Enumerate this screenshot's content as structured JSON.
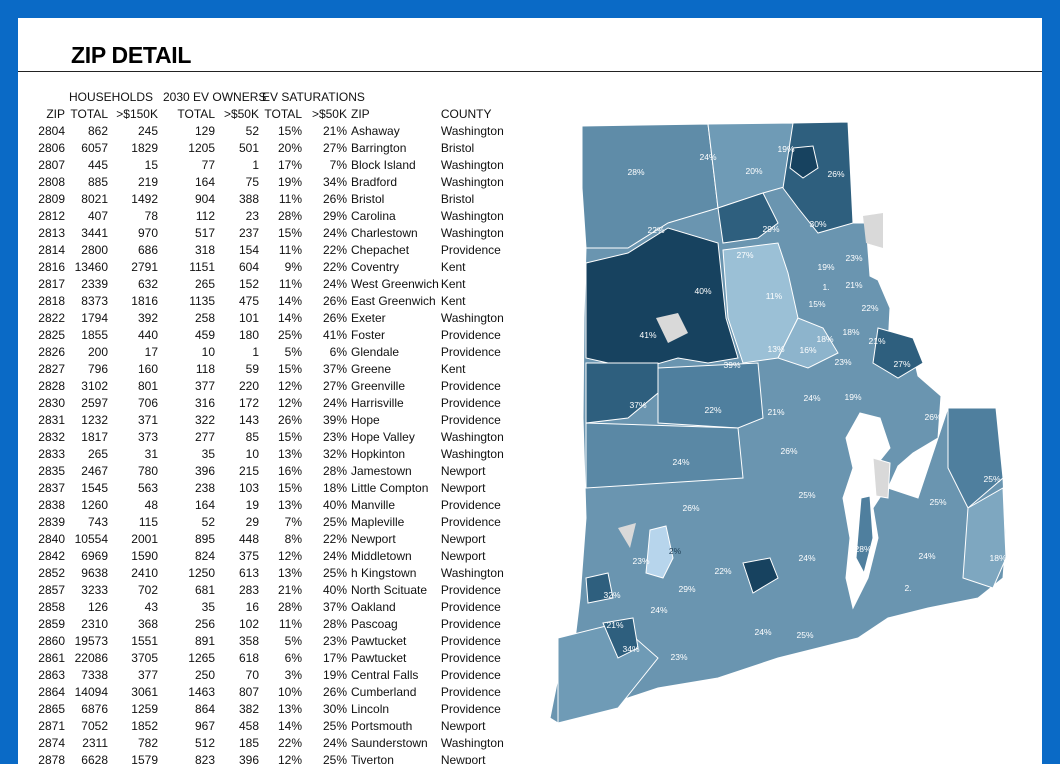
{
  "title": "ZIP DETAIL",
  "group_headers": {
    "households": "HOUSEHOLDS",
    "ev_owners": "2030 EV OWNERS",
    "ev_saturations": "EV SATURATIONS"
  },
  "columns": [
    "ZIP",
    "TOTAL",
    ">$150K",
    "TOTAL",
    ">$50K",
    "TOTAL",
    ">$50K",
    "ZIP",
    "COUNTY"
  ],
  "rows": [
    [
      "2804",
      "862",
      "245",
      "129",
      "52",
      "15%",
      "21%",
      "Ashaway",
      "Washington"
    ],
    [
      "2806",
      "6057",
      "1829",
      "1205",
      "501",
      "20%",
      "27%",
      "Barrington",
      "Bristol"
    ],
    [
      "2807",
      "445",
      "15",
      "77",
      "1",
      "17%",
      "7%",
      "Block Island",
      "Washington"
    ],
    [
      "2808",
      "885",
      "219",
      "164",
      "75",
      "19%",
      "34%",
      "Bradford",
      "Washington"
    ],
    [
      "2809",
      "8021",
      "1492",
      "904",
      "388",
      "11%",
      "26%",
      "Bristol",
      "Bristol"
    ],
    [
      "2812",
      "407",
      "78",
      "112",
      "23",
      "28%",
      "29%",
      "Carolina",
      "Washington"
    ],
    [
      "2813",
      "3441",
      "970",
      "517",
      "237",
      "15%",
      "24%",
      "Charlestown",
      "Washington"
    ],
    [
      "2814",
      "2800",
      "686",
      "318",
      "154",
      "11%",
      "22%",
      "Chepachet",
      "Providence"
    ],
    [
      "2816",
      "13460",
      "2791",
      "1151",
      "604",
      "9%",
      "22%",
      "Coventry",
      "Kent"
    ],
    [
      "2817",
      "2339",
      "632",
      "265",
      "152",
      "11%",
      "24%",
      "West Greenwich",
      "Kent"
    ],
    [
      "2818",
      "8373",
      "1816",
      "1135",
      "475",
      "14%",
      "26%",
      "East Greenwich",
      "Kent"
    ],
    [
      "2822",
      "1794",
      "392",
      "258",
      "101",
      "14%",
      "26%",
      "Exeter",
      "Washington"
    ],
    [
      "2825",
      "1855",
      "440",
      "459",
      "180",
      "25%",
      "41%",
      "Foster",
      "Providence"
    ],
    [
      "2826",
      "200",
      "17",
      "10",
      "1",
      "5%",
      "6%",
      "Glendale",
      "Providence"
    ],
    [
      "2827",
      "796",
      "160",
      "118",
      "59",
      "15%",
      "37%",
      "Greene",
      "Kent"
    ],
    [
      "2828",
      "3102",
      "801",
      "377",
      "220",
      "12%",
      "27%",
      "Greenville",
      "Providence"
    ],
    [
      "2830",
      "2597",
      "706",
      "316",
      "172",
      "12%",
      "24%",
      "Harrisville",
      "Providence"
    ],
    [
      "2831",
      "1232",
      "371",
      "322",
      "143",
      "26%",
      "39%",
      "Hope",
      "Providence"
    ],
    [
      "2832",
      "1817",
      "373",
      "277",
      "85",
      "15%",
      "23%",
      "Hope Valley",
      "Washington"
    ],
    [
      "2833",
      "265",
      "31",
      "35",
      "10",
      "13%",
      "32%",
      "Hopkinton",
      "Washington"
    ],
    [
      "2835",
      "2467",
      "780",
      "396",
      "215",
      "16%",
      "28%",
      "Jamestown",
      "Newport"
    ],
    [
      "2837",
      "1545",
      "563",
      "238",
      "103",
      "15%",
      "18%",
      "Little Compton",
      "Newport"
    ],
    [
      "2838",
      "1260",
      "48",
      "164",
      "19",
      "13%",
      "40%",
      "Manville",
      "Providence"
    ],
    [
      "2839",
      "743",
      "115",
      "52",
      "29",
      "7%",
      "25%",
      "Mapleville",
      "Providence"
    ],
    [
      "2840",
      "10554",
      "2001",
      "895",
      "448",
      "8%",
      "22%",
      "Newport",
      "Newport"
    ],
    [
      "2842",
      "6969",
      "1590",
      "824",
      "375",
      "12%",
      "24%",
      "Middletown",
      "Newport"
    ],
    [
      "2852",
      "9638",
      "2410",
      "1250",
      "613",
      "13%",
      "25%",
      "h Kingstown",
      "Washington"
    ],
    [
      "2857",
      "3233",
      "702",
      "681",
      "283",
      "21%",
      "40%",
      "North Scituate",
      "Providence"
    ],
    [
      "2858",
      "126",
      "43",
      "35",
      "16",
      "28%",
      "37%",
      "Oakland",
      "Providence"
    ],
    [
      "2859",
      "2310",
      "368",
      "256",
      "102",
      "11%",
      "28%",
      "Pascoag",
      "Providence"
    ],
    [
      "2860",
      "19573",
      "1551",
      "891",
      "358",
      "5%",
      "23%",
      "Pawtucket",
      "Providence"
    ],
    [
      "2861",
      "22086",
      "3705",
      "1265",
      "618",
      "6%",
      "17%",
      "Pawtucket",
      "Providence"
    ],
    [
      "2863",
      "7338",
      "377",
      "250",
      "70",
      "3%",
      "19%",
      "Central Falls",
      "Providence"
    ],
    [
      "2864",
      "14094",
      "3061",
      "1463",
      "807",
      "10%",
      "26%",
      "Cumberland",
      "Providence"
    ],
    [
      "2865",
      "6876",
      "1259",
      "864",
      "382",
      "13%",
      "30%",
      "Lincoln",
      "Providence"
    ],
    [
      "2871",
      "7052",
      "1852",
      "967",
      "458",
      "14%",
      "25%",
      "Portsmouth",
      "Newport"
    ],
    [
      "2874",
      "2311",
      "782",
      "512",
      "185",
      "22%",
      "24%",
      "Saunderstown",
      "Washington"
    ],
    [
      "2878",
      "6628",
      "1579",
      "823",
      "396",
      "12%",
      "25%",
      "Tiverton",
      "Newport"
    ]
  ],
  "map_labels": [
    "19%",
    "24%",
    "28%",
    "20%",
    "26%",
    "22%",
    "29%",
    "30%",
    "27%",
    "23%",
    "1.",
    "19%",
    "21%",
    "40%",
    "11%",
    "1.",
    "15%",
    "22%",
    "41%",
    "18%",
    "18%",
    "16%",
    "13%",
    "21%",
    "39%",
    "23%",
    "27%",
    "22%",
    "37%",
    "22%",
    "21%",
    "24%",
    "19%",
    "26%",
    "26%",
    "24%",
    "25%",
    "25%",
    "25%",
    "26%",
    "28%",
    "24%",
    "18%",
    "23%",
    "2%",
    "22%",
    "24%",
    "2.",
    "32%",
    "29%",
    "24%",
    "21%",
    "34%",
    "24%",
    "25%",
    "23%"
  ],
  "colors": {
    "frame": "#0a6ac6",
    "map_light": "#8db4cc",
    "map_mid": "#5f8ca8",
    "map_dark": "#2e5f7e",
    "map_darkest": "#17425f"
  }
}
